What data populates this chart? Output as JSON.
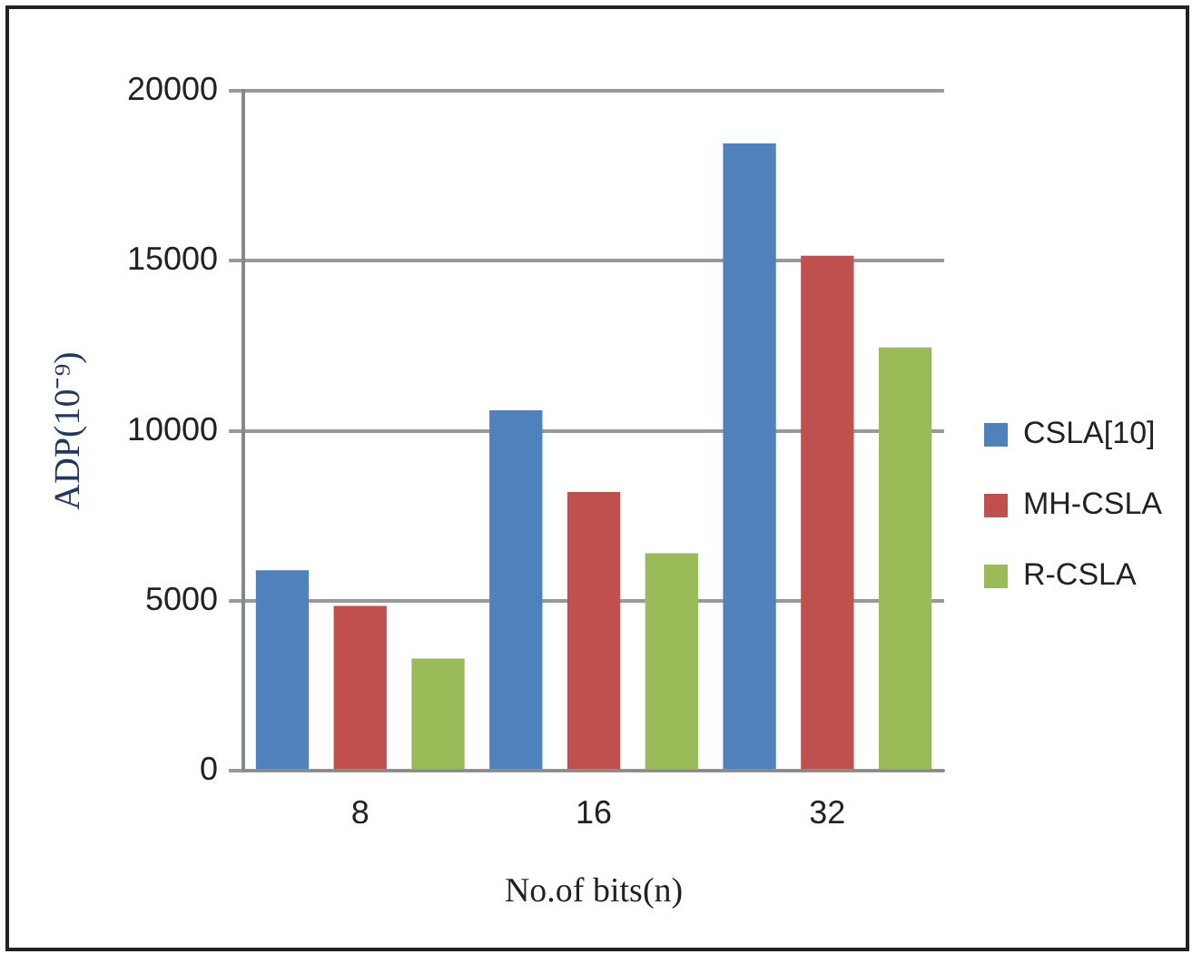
{
  "chart_data": {
    "type": "bar",
    "xlabel": "No.of bits(n)",
    "ylabel": "ADP(10⁻⁹)",
    "categories": [
      "8",
      "16",
      "32"
    ],
    "series": [
      {
        "name": "CSLA[10]",
        "color": "#4f81bd",
        "values": [
          5900,
          10600,
          18450
        ]
      },
      {
        "name": "MH-CSLA",
        "color": "#c0504d",
        "values": [
          4850,
          8200,
          15150
        ]
      },
      {
        "name": "R-CSLA",
        "color": "#9bbb59",
        "values": [
          3300,
          6400,
          12450
        ]
      }
    ],
    "ylim": [
      0,
      20000
    ],
    "yticks": [
      0,
      5000,
      10000,
      15000,
      20000
    ],
    "grid": "y",
    "legend": "right"
  }
}
